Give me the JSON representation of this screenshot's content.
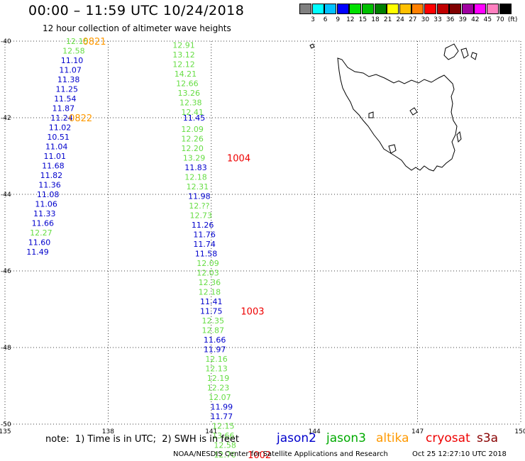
{
  "title": "00:00 – 11:59 UTC 10/24/2018",
  "subtitle": "12 hour collection of altimeter wave heights",
  "colorbar": {
    "colors": [
      "#808080",
      "#00ffff",
      "#00c0ff",
      "#0000ff",
      "#00e000",
      "#00c000",
      "#008000",
      "#ffff00",
      "#ffc000",
      "#ff8000",
      "#ff0000",
      "#c00000",
      "#800000",
      "#a000a0",
      "#ff00ff",
      "#ff80c0",
      "#000000"
    ],
    "labels": [
      "3",
      "6",
      "9",
      "12",
      "15",
      "18",
      "21",
      "24",
      "27",
      "30",
      "33",
      "36",
      "39",
      "42",
      "45",
      "70",
      "(ft)"
    ]
  },
  "chart_data": {
    "type": "map",
    "lon_ticks": [
      "135",
      "138",
      "141",
      "144",
      "147",
      "150"
    ],
    "lat_ticks": [
      "-40",
      "-42",
      "-44",
      "-46",
      "-48",
      "-50"
    ],
    "lon_range": [
      135,
      150
    ],
    "lat_range": [
      -50,
      -40
    ],
    "grid": "dotted",
    "satellite_colors": {
      "jason2": "#0000cc",
      "jason3": "#33cc33",
      "altika": "#ff9900",
      "cryosat": "#ee0000",
      "s3a": "#880000"
    },
    "tracks": [
      {
        "satellite_points": [
          {
            "sat": "jason3",
            "lon": 137.1,
            "lat": -40.0,
            "v": "12.15"
          },
          {
            "sat": "jason3",
            "lon": 137.0,
            "lat": -40.25,
            "v": "12.58"
          },
          {
            "sat": "jason2",
            "lon": 136.95,
            "lat": -40.5,
            "v": "11.10"
          },
          {
            "sat": "jason2",
            "lon": 136.9,
            "lat": -40.75,
            "v": "11.07"
          },
          {
            "sat": "jason2",
            "lon": 136.85,
            "lat": -41.0,
            "v": "11.38"
          },
          {
            "sat": "jason2",
            "lon": 136.8,
            "lat": -41.25,
            "v": "11.25"
          },
          {
            "sat": "jason2",
            "lon": 136.75,
            "lat": -41.5,
            "v": "11.54"
          },
          {
            "sat": "jason2",
            "lon": 136.7,
            "lat": -41.75,
            "v": "11.87"
          },
          {
            "sat": "jason2",
            "lon": 136.65,
            "lat": -42.0,
            "v": "11.24"
          },
          {
            "sat": "jason2",
            "lon": 136.6,
            "lat": -42.25,
            "v": "11.02"
          },
          {
            "sat": "jason2",
            "lon": 136.55,
            "lat": -42.5,
            "v": "10.51"
          },
          {
            "sat": "jason2",
            "lon": 136.5,
            "lat": -42.75,
            "v": "11.04"
          },
          {
            "sat": "jason2",
            "lon": 136.45,
            "lat": -43.0,
            "v": "11.01"
          },
          {
            "sat": "jason2",
            "lon": 136.4,
            "lat": -43.25,
            "v": "11.68"
          },
          {
            "sat": "jason2",
            "lon": 136.35,
            "lat": -43.5,
            "v": "11.82"
          },
          {
            "sat": "jason2",
            "lon": 136.3,
            "lat": -43.75,
            "v": "11.36"
          },
          {
            "sat": "jason2",
            "lon": 136.25,
            "lat": -44.0,
            "v": "11.08"
          },
          {
            "sat": "jason2",
            "lon": 136.2,
            "lat": -44.25,
            "v": "11.06"
          },
          {
            "sat": "jason2",
            "lon": 136.15,
            "lat": -44.5,
            "v": "11.33"
          },
          {
            "sat": "jason2",
            "lon": 136.1,
            "lat": -44.75,
            "v": "11.66"
          },
          {
            "sat": "jason3",
            "lon": 136.05,
            "lat": -45.0,
            "v": "12.27"
          },
          {
            "sat": "jason2",
            "lon": 136.0,
            "lat": -45.25,
            "v": "11.60"
          },
          {
            "sat": "jason2",
            "lon": 135.95,
            "lat": -45.5,
            "v": "11.49"
          }
        ],
        "time_labels": [
          {
            "text": "0821",
            "lon": 137.6,
            "lat": -40.0,
            "sat": "altika"
          },
          {
            "text": "0822",
            "lon": 137.2,
            "lat": -42.0,
            "sat": "altika"
          }
        ]
      },
      {
        "satellite_points": [
          {
            "sat": "jason3",
            "lon": 140.2,
            "lat": -40.1,
            "v": "12.91"
          },
          {
            "sat": "jason3",
            "lon": 140.2,
            "lat": -40.35,
            "v": "13.12"
          },
          {
            "sat": "jason3",
            "lon": 140.2,
            "lat": -40.6,
            "v": "12.12"
          },
          {
            "sat": "jason3",
            "lon": 140.25,
            "lat": -40.85,
            "v": "14.21"
          },
          {
            "sat": "jason3",
            "lon": 140.3,
            "lat": -41.1,
            "v": "12.66"
          },
          {
            "sat": "jason3",
            "lon": 140.35,
            "lat": -41.35,
            "v": "13.26"
          },
          {
            "sat": "jason3",
            "lon": 140.4,
            "lat": -41.6,
            "v": "12.38"
          },
          {
            "sat": "jason3",
            "lon": 140.45,
            "lat": -41.85,
            "v": "12.41"
          },
          {
            "sat": "jason2",
            "lon": 140.5,
            "lat": -42.0,
            "v": "11.45"
          },
          {
            "sat": "jason3",
            "lon": 140.45,
            "lat": -42.3,
            "v": "12.09"
          },
          {
            "sat": "jason3",
            "lon": 140.45,
            "lat": -42.55,
            "v": "12.26"
          },
          {
            "sat": "jason3",
            "lon": 140.45,
            "lat": -42.8,
            "v": "12.20"
          },
          {
            "sat": "jason3",
            "lon": 140.5,
            "lat": -43.05,
            "v": "13.29"
          },
          {
            "sat": "jason2",
            "lon": 140.55,
            "lat": -43.3,
            "v": "11.83"
          },
          {
            "sat": "jason3",
            "lon": 140.55,
            "lat": -43.55,
            "v": "12.18"
          },
          {
            "sat": "jason3",
            "lon": 140.6,
            "lat": -43.8,
            "v": "12.31"
          },
          {
            "sat": "jason2",
            "lon": 140.65,
            "lat": -44.05,
            "v": "11.98"
          },
          {
            "sat": "jason3",
            "lon": 140.65,
            "lat": -44.3,
            "v": "12.??"
          },
          {
            "sat": "jason3",
            "lon": 140.7,
            "lat": -44.55,
            "v": "12.73"
          },
          {
            "sat": "jason2",
            "lon": 140.75,
            "lat": -44.8,
            "v": "11.26"
          },
          {
            "sat": "jason2",
            "lon": 140.8,
            "lat": -45.05,
            "v": "11.76"
          },
          {
            "sat": "jason2",
            "lon": 140.8,
            "lat": -45.3,
            "v": "11.74"
          },
          {
            "sat": "jason2",
            "lon": 140.85,
            "lat": -45.55,
            "v": "11.58"
          },
          {
            "sat": "jason3",
            "lon": 140.9,
            "lat": -45.8,
            "v": "12.09"
          },
          {
            "sat": "jason3",
            "lon": 140.9,
            "lat": -46.05,
            "v": "12.03"
          },
          {
            "sat": "jason3",
            "lon": 140.95,
            "lat": -46.3,
            "v": "12.36"
          },
          {
            "sat": "jason3",
            "lon": 140.95,
            "lat": -46.55,
            "v": "12.18"
          },
          {
            "sat": "jason2",
            "lon": 141.0,
            "lat": -46.8,
            "v": "11.41"
          },
          {
            "sat": "jason2",
            "lon": 141.0,
            "lat": -47.05,
            "v": "11.75"
          },
          {
            "sat": "jason3",
            "lon": 141.05,
            "lat": -47.3,
            "v": "12.35"
          },
          {
            "sat": "jason3",
            "lon": 141.05,
            "lat": -47.55,
            "v": "12.87"
          },
          {
            "sat": "jason2",
            "lon": 141.1,
            "lat": -47.8,
            "v": "11.66"
          },
          {
            "sat": "jason2",
            "lon": 141.1,
            "lat": -48.05,
            "v": "11.97"
          },
          {
            "sat": "jason3",
            "lon": 141.15,
            "lat": -48.3,
            "v": "12.16"
          },
          {
            "sat": "jason3",
            "lon": 141.15,
            "lat": -48.55,
            "v": "12.13"
          },
          {
            "sat": "jason3",
            "lon": 141.2,
            "lat": -48.8,
            "v": "12.19"
          },
          {
            "sat": "jason3",
            "lon": 141.2,
            "lat": -49.05,
            "v": "12.23"
          },
          {
            "sat": "jason3",
            "lon": 141.25,
            "lat": -49.3,
            "v": "12.07"
          },
          {
            "sat": "jason2",
            "lon": 141.3,
            "lat": -49.55,
            "v": "11.99"
          },
          {
            "sat": "jason2",
            "lon": 141.3,
            "lat": -49.8,
            "v": "11.77"
          },
          {
            "sat": "jason3",
            "lon": 141.35,
            "lat": -50.05,
            "v": "12.15"
          },
          {
            "sat": "jason3",
            "lon": 141.35,
            "lat": -50.3,
            "v": "13.66"
          },
          {
            "sat": "jason3",
            "lon": 141.4,
            "lat": -50.55,
            "v": "12.58"
          },
          {
            "sat": "jason3",
            "lon": 141.4,
            "lat": -50.8,
            "v": "12.70"
          }
        ],
        "time_labels": [
          {
            "text": "1004",
            "lon": 141.8,
            "lat": -43.05,
            "sat": "cryosat"
          },
          {
            "text": "1003",
            "lon": 142.2,
            "lat": -47.05,
            "sat": "cryosat"
          },
          {
            "text": "1002",
            "lon": 142.4,
            "lat": -50.8,
            "sat": "cryosat"
          }
        ]
      }
    ]
  },
  "footer": {
    "note": "note:  1) Time is in UTC;  2) SWH is in feet",
    "legend": [
      {
        "text": "jason2",
        "color": "#0000cc"
      },
      {
        "text": "jason3",
        "color": "#00aa00"
      },
      {
        "text": "altika",
        "color": "#ff9900"
      },
      {
        "text": "cryosat",
        "color": "#ee0000"
      },
      {
        "text": "s3a",
        "color": "#880000"
      }
    ],
    "credit": "NOAA/NESDIS Center for Satellite Applications and Research",
    "timestamp": "Oct 25 12:27:10 UTC 2018"
  }
}
